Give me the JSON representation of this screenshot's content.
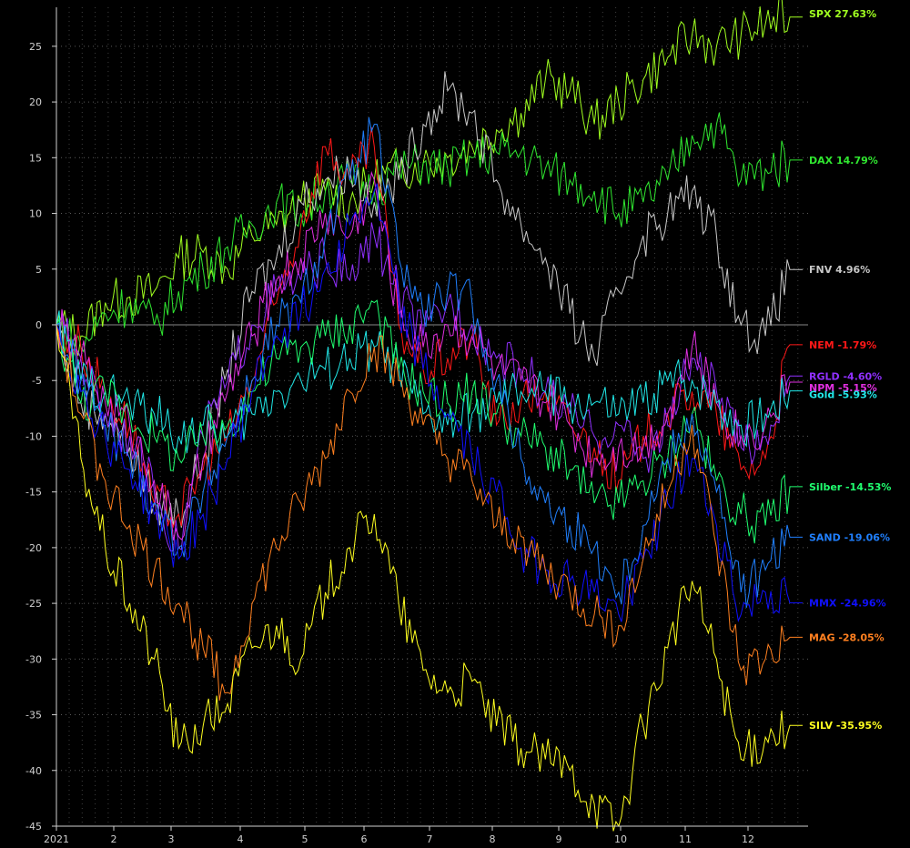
{
  "chart_data": {
    "type": "line",
    "x_ticks": [
      "2021",
      "2",
      "3",
      "4",
      "5",
      "6",
      "7",
      "8",
      "9",
      "10",
      "11",
      "12"
    ],
    "y_ticks": [
      25,
      20,
      15,
      10,
      5,
      0,
      -5,
      -10,
      -15,
      -20,
      -25,
      -30,
      -35,
      -40,
      -45
    ],
    "ylim": [
      -45,
      28.5
    ],
    "grid": true,
    "legend": "right",
    "series": [
      {
        "name": "SPX",
        "label": "SPX 27.63%",
        "color": "#a0ff20",
        "values": [
          0,
          -1,
          2,
          2.5,
          3,
          6,
          6.5,
          5,
          8,
          9,
          11,
          12,
          11,
          13,
          14,
          14.5,
          15,
          16,
          17.5,
          19,
          22,
          21,
          18,
          20,
          22,
          24,
          26,
          25,
          26,
          27,
          27.63
        ]
      },
      {
        "name": "DAX",
        "label": "DAX 14.79%",
        "color": "#30e830",
        "values": [
          0,
          -2,
          1,
          2,
          0,
          3,
          5,
          7,
          9,
          11,
          10,
          12,
          13,
          12,
          14,
          14.5,
          14,
          15,
          15.5,
          15.5,
          14,
          13,
          12,
          10,
          11,
          13,
          17,
          18,
          13,
          14,
          14.79
        ]
      },
      {
        "name": "FNV",
        "label": "FNV  4.96%",
        "color": "#c8c8c8",
        "values": [
          0,
          -7,
          -8,
          -11,
          -16,
          -17,
          -12,
          -4,
          3,
          6,
          11,
          13,
          14,
          11,
          13,
          18,
          21,
          19,
          13,
          9,
          6,
          1,
          -3,
          3,
          8,
          10,
          12,
          8,
          0,
          -1,
          4.96
        ]
      },
      {
        "name": "NEM",
        "label": "NEM -1.79%",
        "color": "#ff1818",
        "values": [
          0,
          -2,
          -6,
          -9,
          -16,
          -17,
          -13,
          -10,
          -5,
          2,
          9,
          16,
          13,
          16,
          0,
          -4,
          -3,
          -1,
          -9,
          -7,
          -6,
          -9,
          -11,
          -14,
          -10,
          -8,
          -6,
          -8,
          -13,
          -12,
          -1.79
        ]
      },
      {
        "name": "RGLD",
        "label": "RGLD -4.60%",
        "color": "#9030ff",
        "values": [
          0,
          -3,
          -8,
          -10,
          -15,
          -20,
          -10,
          -5,
          0,
          3,
          4,
          6,
          4,
          8,
          3,
          -1,
          2,
          0,
          -3,
          -4,
          -6,
          -8,
          -10,
          -9,
          -12,
          -9,
          -3,
          -6,
          -11,
          -10,
          -4.6
        ]
      },
      {
        "name": "NPM",
        "label": "NPM -5.15%",
        "color": "#e030e0",
        "values": [
          0,
          -3,
          -7,
          -9,
          -14,
          -19,
          -12,
          -6,
          -1,
          4,
          6,
          10,
          8,
          13,
          1,
          -2,
          0,
          -1,
          -4,
          -5,
          -7,
          -9,
          -12,
          -11,
          -11,
          -8,
          -2,
          -7,
          -10,
          -9,
          -5.15
        ]
      },
      {
        "name": "Gold",
        "label": "Gold -5.93%",
        "color": "#20e8e8",
        "values": [
          0,
          -5,
          -6,
          -7,
          -8,
          -10,
          -9,
          -10,
          -8,
          -6,
          -5,
          -4,
          -3,
          -2,
          -4,
          -8,
          -9,
          -8,
          -7,
          -6,
          -6,
          -7,
          -7,
          -8,
          -7,
          -5,
          -5,
          -7,
          -9,
          -8,
          -5.93
        ]
      },
      {
        "name": "Silber",
        "label": "Silber -14.53%",
        "color": "#20ff70",
        "values": [
          0,
          -7,
          -6,
          -8,
          -10,
          -12,
          -10,
          -9,
          -6,
          -3,
          -2,
          -1,
          0,
          2,
          -4,
          -6,
          -7,
          -6,
          -8,
          -10,
          -11,
          -13,
          -16,
          -16,
          -14,
          -12,
          -8,
          -14,
          -17,
          -18,
          -14.53
        ]
      },
      {
        "name": "SAND",
        "label": "SAND -19.06%",
        "color": "#2080ff",
        "values": [
          0,
          -5,
          -9,
          -12,
          -16,
          -20,
          -15,
          -10,
          -5,
          0,
          2,
          8,
          13,
          18,
          6,
          1,
          3,
          2,
          -5,
          -12,
          -16,
          -18,
          -20,
          -24,
          -18,
          -12,
          -8,
          -15,
          -24,
          -22,
          -19.06
        ]
      },
      {
        "name": "MMX",
        "label": "MMX -24.96%",
        "color": "#1010ff",
        "values": [
          0,
          -6,
          -10,
          -13,
          -17,
          -21,
          -17,
          -12,
          -6,
          -1,
          1,
          5,
          9,
          12,
          2,
          -4,
          -8,
          -12,
          -15,
          -20,
          -22,
          -23,
          -24,
          -26,
          -21,
          -16,
          -12,
          -18,
          -26,
          -24,
          -24.96
        ]
      },
      {
        "name": "MAG",
        "label": "MAG -28.05%",
        "color": "#ff8020",
        "values": [
          0,
          -8,
          -14,
          -18,
          -22,
          -25,
          -29,
          -33,
          -25,
          -20,
          -16,
          -12,
          -6,
          -2,
          -5,
          -9,
          -12,
          -14,
          -18,
          -19,
          -22,
          -24,
          -26,
          -27,
          -21,
          -15,
          -9,
          -20,
          -31,
          -30,
          -28.05
        ]
      },
      {
        "name": "SILV",
        "label": "SILV -35.95%",
        "color": "#ffff20",
        "values": [
          0,
          -12,
          -20,
          -25,
          -30,
          -38,
          -36,
          -34,
          -29,
          -27,
          -30,
          -24,
          -20,
          -17,
          -25,
          -31,
          -33,
          -32,
          -36,
          -38,
          -39,
          -40,
          -43,
          -45,
          -36,
          -29,
          -23,
          -30,
          -39,
          -37,
          -35.95
        ]
      }
    ]
  }
}
